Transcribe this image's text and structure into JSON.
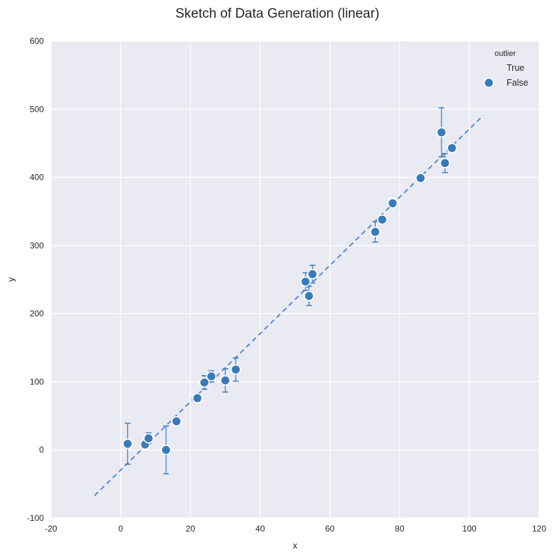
{
  "chart_data": {
    "type": "scatter",
    "title": "Sketch of Data Generation (linear)",
    "xlabel": "x",
    "ylabel": "y",
    "xlim": [
      -20,
      120
    ],
    "ylim": [
      -100,
      600
    ],
    "xticks": [
      -20,
      0,
      20,
      40,
      60,
      80,
      100,
      120
    ],
    "yticks": [
      -100,
      0,
      100,
      200,
      300,
      400,
      500,
      600
    ],
    "grid": true,
    "legend": {
      "title": "outlier",
      "position": "top-right",
      "entries": [
        {
          "label": "True",
          "marker": "none"
        },
        {
          "label": "False",
          "marker": "circle"
        }
      ]
    },
    "fit_line": {
      "x": [
        -7.5,
        104
      ],
      "y": [
        -67,
        491
      ],
      "style": "dashed"
    },
    "points": [
      {
        "x": 2,
        "y": 9,
        "err": 30
      },
      {
        "x": 7,
        "y": 8,
        "err": 6
      },
      {
        "x": 8,
        "y": 17,
        "err": 8
      },
      {
        "x": 13,
        "y": 0,
        "err": 35
      },
      {
        "x": 16,
        "y": 42,
        "err": 6
      },
      {
        "x": 22,
        "y": 76,
        "err": 5
      },
      {
        "x": 24,
        "y": 99,
        "err": 10
      },
      {
        "x": 26,
        "y": 108,
        "err": 8
      },
      {
        "x": 30,
        "y": 102,
        "err": 17
      },
      {
        "x": 33,
        "y": 118,
        "err": 17
      },
      {
        "x": 53,
        "y": 247,
        "err": 13
      },
      {
        "x": 54,
        "y": 226,
        "err": 14
      },
      {
        "x": 55,
        "y": 258,
        "err": 13
      },
      {
        "x": 73,
        "y": 320,
        "err": 15
      },
      {
        "x": 75,
        "y": 338,
        "err": 5
      },
      {
        "x": 78,
        "y": 362,
        "err": 4
      },
      {
        "x": 86,
        "y": 399,
        "err": 3
      },
      {
        "x": 92,
        "y": 466,
        "err": 36
      },
      {
        "x": 93,
        "y": 421,
        "err": 14
      },
      {
        "x": 95,
        "y": 443,
        "err": 4
      }
    ],
    "colors": {
      "background": "#eaeaf2",
      "grid": "#ffffff",
      "marker": "#3a7ab8",
      "marker_edge": "#ffffff",
      "line": "#5b8bd0"
    }
  }
}
